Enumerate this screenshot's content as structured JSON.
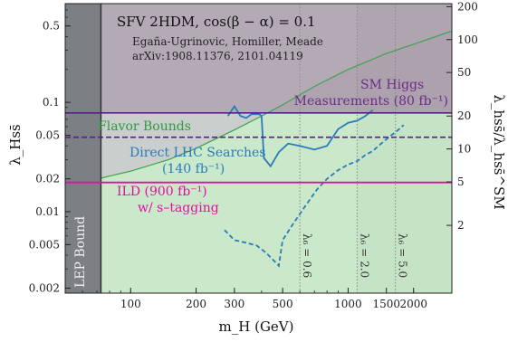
{
  "chart_data": {
    "type": "line",
    "title": "SFV 2HDM, cos(β − α) = 0.1",
    "subtitle_lines": [
      "Egaña-Ugrinovic, Homiller, Meade",
      "arXiv:1908.11376, 2101.04119"
    ],
    "xlabel": "m_H (GeV)",
    "ylabel": "λ_Hss̄",
    "ylabel_right": "λ_hss̄/λ_hss̄^SM",
    "x_scale": "log",
    "y_scale": "log",
    "xlim": [
      50,
      3000
    ],
    "ylim": [
      0.0018,
      0.8
    ],
    "x_ticks": [
      100,
      200,
      300,
      500,
      1000,
      1500,
      2000
    ],
    "x_tick_labels": [
      "100",
      "200",
      "300",
      "500",
      "1000",
      "1500",
      "2000"
    ],
    "y_ticks": [
      0.002,
      0.005,
      0.01,
      0.02,
      0.05,
      0.1,
      0.5
    ],
    "y_tick_labels": [
      "0.002",
      "0.005",
      "0.01",
      "0.02",
      "0.05",
      "0.1",
      "0.5"
    ],
    "y2_ticks": [
      2,
      5,
      10,
      20,
      50,
      100,
      200
    ],
    "y2_tick_labels": [
      "2",
      "5",
      "10",
      "20",
      "50",
      "100",
      "200"
    ],
    "y2_per_y1": 0.00375,
    "regions": [
      {
        "name": "LEP Bound",
        "label": "LEP Bound",
        "x_max": 73,
        "color": "#7c7f83"
      },
      {
        "name": "Flavor Bounds",
        "label": "Flavor Bounds",
        "color": "#b8e0b8",
        "edge_color": "#3fa34d",
        "boundary": [
          [
            50,
            0.0185
          ],
          [
            60,
            0.0192
          ],
          [
            70,
            0.0198
          ],
          [
            80,
            0.0212
          ],
          [
            100,
            0.0235
          ],
          [
            150,
            0.03
          ],
          [
            200,
            0.038
          ],
          [
            300,
            0.056
          ],
          [
            400,
            0.075
          ],
          [
            500,
            0.095
          ],
          [
            700,
            0.14
          ],
          [
            1000,
            0.2
          ],
          [
            1500,
            0.28
          ],
          [
            2000,
            0.34
          ],
          [
            3000,
            0.45
          ]
        ]
      },
      {
        "name": "SM Higgs",
        "label_lines": [
          "SM Higgs",
          "Measurements (80 fb⁻¹)"
        ],
        "color": "#8e4f91",
        "y_min": 0.08
      }
    ],
    "series": [
      {
        "name": "Direct LHC Searches",
        "label_lines": [
          "Direct LHC Searches",
          "(140 fb⁻¹)"
        ],
        "color": "#2b7bba",
        "style": "solid",
        "x": [
          280,
          300,
          320,
          340,
          360,
          390,
          400,
          410,
          440,
          480,
          530,
          600,
          700,
          800,
          900,
          1000,
          1100,
          1200,
          1300
        ],
        "y": [
          0.075,
          0.092,
          0.075,
          0.072,
          0.078,
          0.078,
          0.075,
          0.031,
          0.026,
          0.035,
          0.042,
          0.04,
          0.037,
          0.04,
          0.057,
          0.065,
          0.068,
          0.075,
          0.085
        ]
      },
      {
        "name": "Projected",
        "color": "#2b7bba",
        "style": "dashed",
        "x": [
          270,
          300,
          340,
          380,
          420,
          460,
          480,
          500,
          560,
          640,
          720,
          800,
          900,
          1000,
          1100,
          1200,
          1300,
          1400,
          1500,
          1700,
          1800
        ],
        "y": [
          0.0068,
          0.0055,
          0.0052,
          0.0049,
          0.0042,
          0.0035,
          0.0032,
          0.0055,
          0.0078,
          0.0115,
          0.016,
          0.02,
          0.024,
          0.027,
          0.029,
          0.033,
          0.036,
          0.041,
          0.046,
          0.056,
          0.062
        ]
      },
      {
        "name": "ILD",
        "label_lines": [
          "ILD (900 fb⁻¹)",
          "w/ s–tagging"
        ],
        "color": "#e20fa3",
        "style": "solid",
        "x": [
          50,
          3000
        ],
        "y": [
          0.0185,
          0.0185
        ]
      },
      {
        "name": "SM Higgs current",
        "color": "#5a1e8c",
        "style": "solid",
        "x": [
          50,
          3000
        ],
        "y": [
          0.08,
          0.08
        ]
      },
      {
        "name": "SM Higgs projected",
        "color": "#5a1e8c",
        "style": "dashed",
        "x": [
          50,
          3000
        ],
        "y": [
          0.048,
          0.048
        ]
      }
    ],
    "lambda6_lines": [
      {
        "x": 600,
        "label": "λ₆ = 0.6"
      },
      {
        "x": 1100,
        "label": "λ₆ = 2.0"
      },
      {
        "x": 1650,
        "label": "λ₆ = 5.0"
      }
    ],
    "shaded_x_min": 1100,
    "grid": false,
    "legend": "none"
  }
}
